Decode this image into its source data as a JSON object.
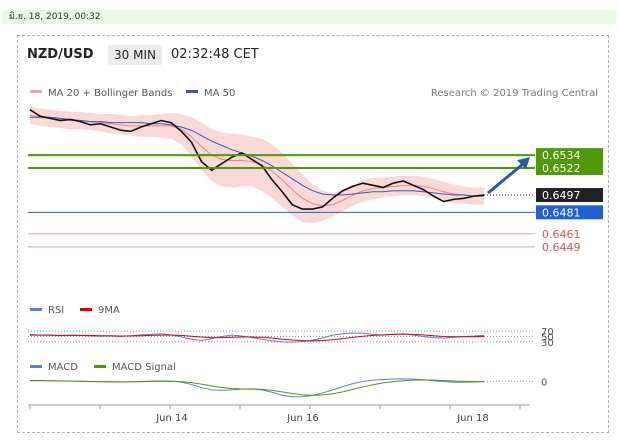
{
  "datetime": "มิ.ย. 18, 2019, 00:32",
  "header": {
    "symbol": "NZD/USD",
    "timeframe": "30 MIN",
    "time": "02:32:48 CET"
  },
  "legend": {
    "bollinger": "MA 20 + Bollinger Bands",
    "ma50": "MA 50",
    "credit": "Research © 2019 Trading Central"
  },
  "colors": {
    "green_level": "#4e9a06",
    "current": "#222222",
    "blue_level": "#1f5fd6",
    "red_level": "#e05050",
    "bollinger": "#f4b8b8",
    "ma50": "#3a5aa8",
    "arrow": "#2b5aa0"
  },
  "chart_data": {
    "type": "line",
    "x_ticks": [
      "Jun 14",
      "Jun 16",
      "Jun 18"
    ],
    "y_range": [
      0.6435,
      0.6585
    ],
    "levels": [
      {
        "name": "resistance",
        "value": "0.6534",
        "style": "green"
      },
      {
        "name": "resistance",
        "value": "0.6522",
        "style": "green"
      },
      {
        "name": "current",
        "value": "0.6497",
        "style": "current"
      },
      {
        "name": "support",
        "value": "0.6481",
        "style": "blue"
      },
      {
        "name": "support",
        "value": "0.6461",
        "style": "red"
      },
      {
        "name": "support",
        "value": "0.6449",
        "style": "red"
      }
    ],
    "price": [
      0.6576,
      0.657,
      0.6568,
      0.6566,
      0.6567,
      0.6565,
      0.6562,
      0.6563,
      0.656,
      0.6557,
      0.6556,
      0.656,
      0.6563,
      0.6566,
      0.6564,
      0.6556,
      0.6546,
      0.6528,
      0.652,
      0.6526,
      0.6532,
      0.6536,
      0.653,
      0.6524,
      0.6511,
      0.65,
      0.6488,
      0.6484,
      0.6484,
      0.6486,
      0.6494,
      0.6501,
      0.6505,
      0.6508,
      0.6506,
      0.6504,
      0.6508,
      0.651,
      0.6506,
      0.6502,
      0.6496,
      0.6491,
      0.6493,
      0.6494,
      0.6496,
      0.6497
    ],
    "ma20": [
      0.6571,
      0.6569,
      0.6568,
      0.6567,
      0.6566,
      0.6566,
      0.6565,
      0.6564,
      0.6563,
      0.6562,
      0.6561,
      0.6561,
      0.6561,
      0.6561,
      0.6561,
      0.6558,
      0.6551,
      0.6542,
      0.6534,
      0.653,
      0.6529,
      0.6529,
      0.6528,
      0.6525,
      0.6519,
      0.6511,
      0.6502,
      0.6494,
      0.6489,
      0.6487,
      0.6488,
      0.6492,
      0.6497,
      0.6501,
      0.6503,
      0.6504,
      0.6505,
      0.6506,
      0.6506,
      0.6505,
      0.6503,
      0.65,
      0.6498,
      0.6497,
      0.6496,
      0.6496
    ],
    "ma50": [
      0.6569,
      0.6569,
      0.6569,
      0.6568,
      0.6567,
      0.6566,
      0.6565,
      0.6565,
      0.6564,
      0.6564,
      0.6564,
      0.6564,
      0.6563,
      0.6563,
      0.6562,
      0.656,
      0.6557,
      0.6552,
      0.6547,
      0.6543,
      0.6539,
      0.6536,
      0.6533,
      0.6529,
      0.6524,
      0.6518,
      0.6512,
      0.6506,
      0.6501,
      0.6498,
      0.6497,
      0.6497,
      0.6498,
      0.6499,
      0.65,
      0.65,
      0.6501,
      0.6501,
      0.6501,
      0.65,
      0.6499,
      0.6498,
      0.6497,
      0.6497,
      0.6496,
      0.6496
    ],
    "bb_width": [
      0.0008,
      0.0008,
      0.0008,
      0.0008,
      0.0008,
      0.0008,
      0.0008,
      0.0008,
      0.0009,
      0.0009,
      0.0009,
      0.001,
      0.001,
      0.0011,
      0.0012,
      0.0014,
      0.0018,
      0.0022,
      0.0024,
      0.0025,
      0.0025,
      0.0024,
      0.0023,
      0.0024,
      0.0025,
      0.0025,
      0.0024,
      0.0022,
      0.0018,
      0.0014,
      0.0011,
      0.001,
      0.001,
      0.001,
      0.001,
      0.0009,
      0.0009,
      0.0009,
      0.0009,
      0.0009,
      0.0009,
      0.0009,
      0.0009,
      0.0008,
      0.0008,
      0.0008
    ],
    "projection_target": 0.6534,
    "rsi": {
      "legend": [
        "RSI",
        "9MA"
      ],
      "levels": [
        "70",
        "50",
        "30"
      ],
      "range": [
        0,
        100
      ],
      "rsi": [
        58,
        55,
        54,
        53,
        55,
        54,
        52,
        51,
        52,
        50,
        53,
        56,
        58,
        60,
        56,
        48,
        40,
        35,
        42,
        50,
        55,
        52,
        46,
        40,
        34,
        30,
        29,
        31,
        36,
        45,
        55,
        60,
        63,
        62,
        58,
        55,
        58,
        60,
        55,
        50,
        46,
        44,
        47,
        50,
        52,
        54
      ],
      "ma9": [
        55,
        55,
        55,
        54,
        54,
        54,
        54,
        53,
        53,
        52,
        52,
        53,
        54,
        55,
        55,
        54,
        51,
        48,
        46,
        46,
        47,
        48,
        48,
        47,
        44,
        40,
        37,
        35,
        34,
        35,
        38,
        42,
        47,
        51,
        54,
        56,
        58,
        59,
        58,
        56,
        53,
        50,
        49,
        49,
        49,
        50
      ]
    },
    "macd": {
      "legend": [
        "MACD",
        "MACD Signal"
      ],
      "zero_label": "0",
      "range": [
        -0.0012,
        0.0006
      ],
      "macd": [
        5e-05,
        6e-05,
        4e-05,
        2e-05,
        1e-05,
        0.0,
        -2e-05,
        -3e-05,
        -4e-05,
        -4e-05,
        -3e-05,
        -1e-05,
        1e-05,
        2e-05,
        1e-05,
        -5e-05,
        -0.0002,
        -0.0004,
        -0.00055,
        -0.00058,
        -0.00055,
        -0.0005,
        -0.00048,
        -0.00055,
        -0.0007,
        -0.0009,
        -0.001,
        -0.00098,
        -0.0009,
        -0.00075,
        -0.00055,
        -0.00035,
        -0.00015,
        0.0,
        8e-05,
        0.00012,
        0.00015,
        0.00016,
        0.00014,
        0.0001,
        4e-05,
        -2e-05,
        -6e-05,
        -6e-05,
        -4e-05,
        -2e-05
      ],
      "signal": [
        3e-05,
        4e-05,
        4e-05,
        3e-05,
        2e-05,
        1e-05,
        0.0,
        -1e-05,
        -2e-05,
        -3e-05,
        -3e-05,
        -2e-05,
        -1e-05,
        0.0,
        0.0,
        -2e-05,
        -8e-05,
        -0.00018,
        -0.0003,
        -0.0004,
        -0.00046,
        -0.00049,
        -0.0005,
        -0.00052,
        -0.00058,
        -0.00068,
        -0.00078,
        -0.00086,
        -0.0009,
        -0.00088,
        -0.0008,
        -0.00068,
        -0.00052,
        -0.00036,
        -0.00022,
        -0.0001,
        -2e-05,
        4e-05,
        8e-05,
        9e-05,
        8e-05,
        5e-05,
        2e-05,
        0.0,
        -1e-05,
        -2e-05
      ]
    }
  }
}
